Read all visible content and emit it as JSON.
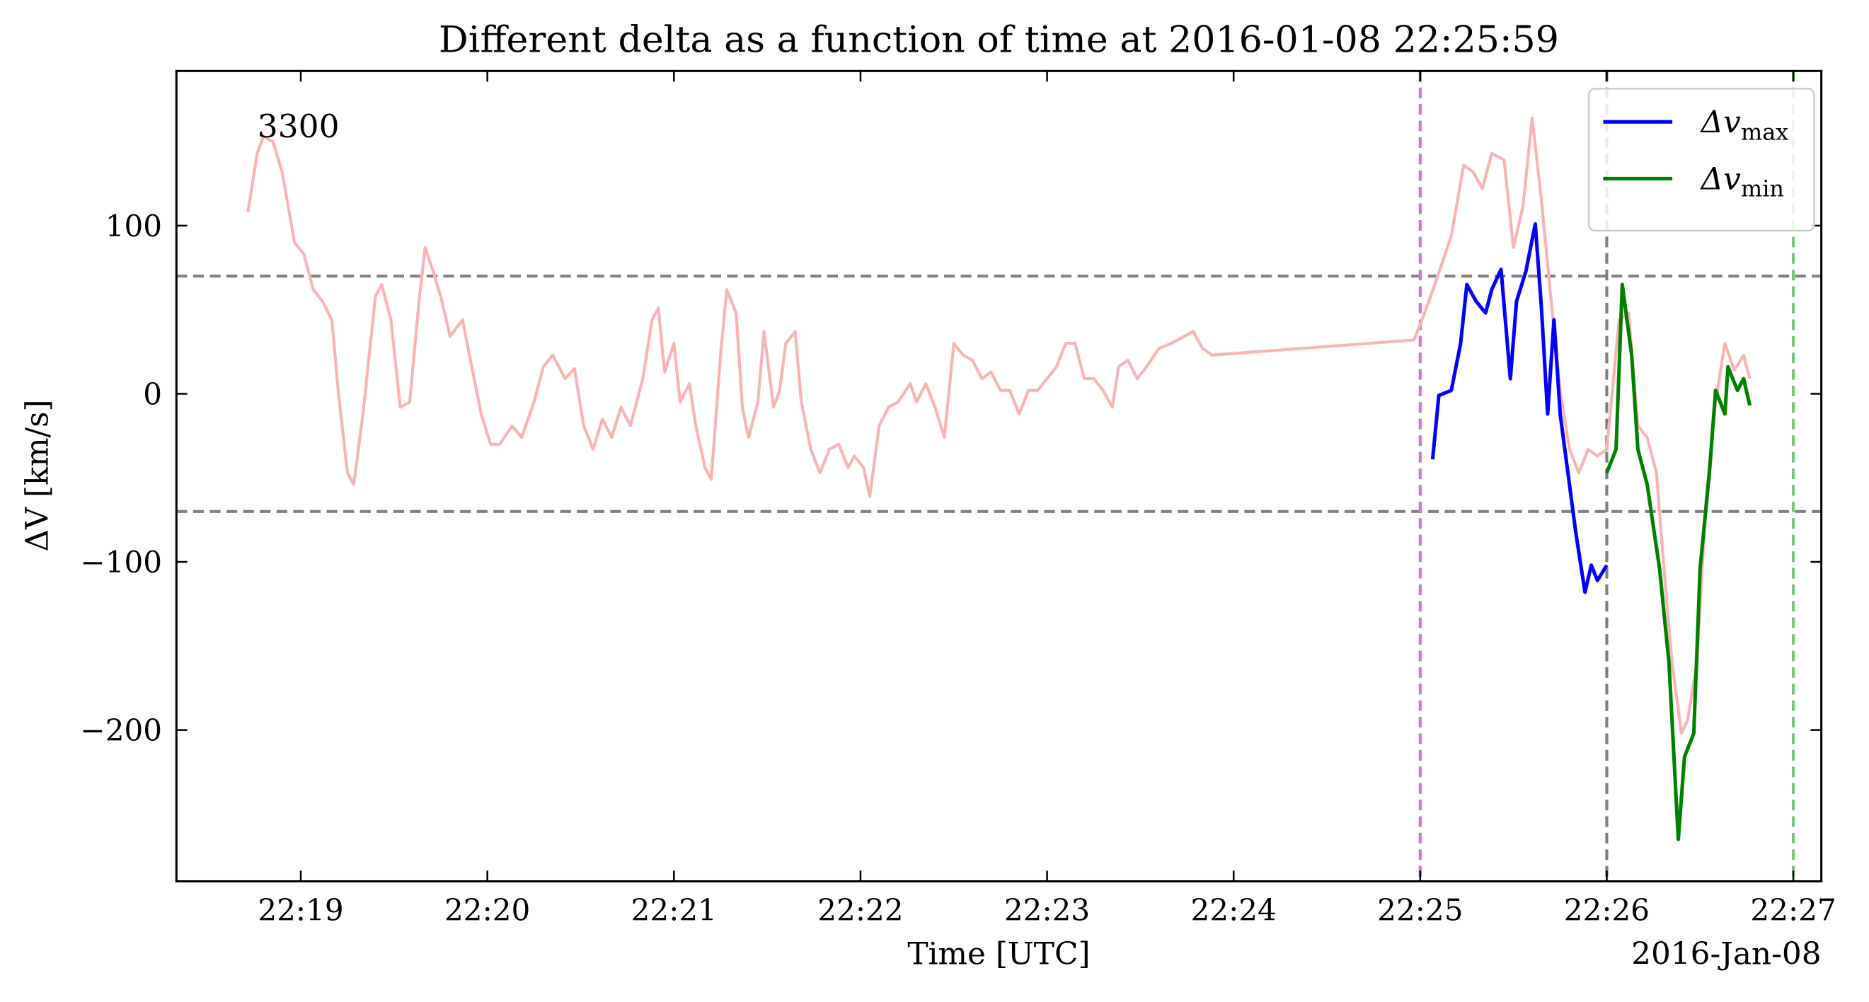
{
  "chart_data": {
    "type": "line",
    "title": "Different delta as a function of time at 2016-01-08 22:25:59",
    "xlabel": "Time [UTC]",
    "ylabel": "ΔV [km/s]",
    "x_offset_label": "2016-Jan-08",
    "annotation": {
      "text": "3300",
      "color": "#008000"
    },
    "xlim": [
      "22:18:20",
      "22:27:09"
    ],
    "xticks": [
      "22:19",
      "22:20",
      "22:21",
      "22:22",
      "22:23",
      "22:24",
      "22:25",
      "22:26",
      "22:27"
    ],
    "ylim": [
      -290,
      192
    ],
    "yticks": [
      {
        "value": -200,
        "label": "−200"
      },
      {
        "value": -100,
        "label": "−100"
      },
      0,
      100
    ],
    "legend": "upper right",
    "hlines": [
      {
        "value": 70,
        "color": "#808080"
      },
      {
        "value": -70,
        "color": "#808080"
      }
    ],
    "vlines": [
      {
        "x": "22:25:00",
        "color": "#da70d6"
      },
      {
        "x": "22:26:00",
        "color": "#808080"
      },
      {
        "x": "22:27:00",
        "color": "#7cc47c"
      }
    ],
    "series": [
      {
        "color": "#f9b3b3",
        "x": [
          "22:18:43",
          "22:18:46",
          "22:18:48",
          "22:18:51",
          "22:18:54",
          "22:18:56",
          "22:18:58",
          "22:19:01",
          "22:19:04",
          "22:19:07",
          "22:19:10",
          "22:19:12",
          "22:19:15",
          "22:19:17",
          "22:19:20",
          "22:19:24",
          "22:19:26",
          "22:19:29",
          "22:19:32",
          "22:19:35",
          "22:19:38",
          "22:19:40",
          "22:19:42",
          "22:19:45",
          "22:19:48",
          "22:19:52",
          "22:19:55",
          "22:19:58",
          "22:20:01",
          "22:20:04",
          "22:20:08",
          "22:20:11",
          "22:20:15",
          "22:20:18",
          "22:20:21",
          "22:20:25",
          "22:20:28",
          "22:20:31",
          "22:20:34",
          "22:20:37",
          "22:20:40",
          "22:20:43",
          "22:20:46",
          "22:20:50",
          "22:20:53",
          "22:20:55",
          "22:20:57",
          "22:21:00",
          "22:21:02",
          "22:21:05",
          "22:21:07",
          "22:21:10",
          "22:21:12",
          "22:21:15",
          "22:21:17",
          "22:21:20",
          "22:21:22",
          "22:21:24",
          "22:21:27",
          "22:21:29",
          "22:21:32",
          "22:21:34",
          "22:21:36",
          "22:21:39",
          "22:21:41",
          "22:21:44",
          "22:21:47",
          "22:21:50",
          "22:21:53",
          "22:21:56",
          "22:21:58",
          "22:22:01",
          "22:22:03",
          "22:22:06",
          "22:22:09",
          "22:22:12",
          "22:22:16",
          "22:22:18",
          "22:22:21",
          "22:22:24",
          "22:22:27",
          "22:22:30",
          "22:22:33",
          "22:22:36",
          "22:22:39",
          "22:22:42",
          "22:22:45",
          "22:22:48",
          "22:22:51",
          "22:22:54",
          "22:22:57",
          "22:23:00",
          "22:23:03",
          "22:23:06",
          "22:23:09",
          "22:23:12",
          "22:23:15",
          "22:23:18",
          "22:23:21",
          "22:23:23",
          "22:23:26",
          "22:23:29",
          "22:23:32",
          "22:23:36",
          "22:23:40",
          "22:23:44",
          "22:23:47",
          "22:23:50",
          "22:23:53",
          "22:24:58",
          "22:25:02",
          "22:25:06",
          "22:25:10",
          "22:25:14",
          "22:25:17",
          "22:25:20",
          "22:25:23",
          "22:25:27",
          "22:25:30",
          "22:25:33",
          "22:25:36",
          "22:25:39",
          "22:25:42",
          "22:25:45",
          "22:25:48",
          "22:25:51",
          "22:25:54",
          "22:25:57",
          "22:26:00",
          "22:26:04",
          "22:26:07",
          "22:26:10",
          "22:26:13",
          "22:26:16",
          "22:26:19",
          "22:26:21",
          "22:26:24",
          "22:26:26",
          "22:26:29",
          "22:26:32",
          "22:26:35",
          "22:26:38",
          "22:26:41",
          "22:26:44",
          "22:26:46"
        ],
        "values": [
          108,
          143,
          153,
          150,
          132,
          111,
          90,
          83,
          62,
          55,
          44,
          2,
          -47,
          -54,
          -12,
          58,
          65,
          44,
          -8,
          -5,
          55,
          87,
          76,
          58,
          34,
          44,
          16,
          -12,
          -30,
          -30,
          -19,
          -26,
          -5,
          16,
          23,
          9,
          15,
          -19,
          -33,
          -15,
          -26,
          -8,
          -19,
          9,
          44,
          51,
          13,
          30,
          -5,
          6,
          -19,
          -44,
          -51,
          23,
          62,
          48,
          -8,
          -26,
          -5,
          37,
          -8,
          2,
          30,
          37,
          -5,
          -33,
          -47,
          -33,
          -30,
          -44,
          -37,
          -44,
          -61,
          -19,
          -8,
          -5,
          6,
          -5,
          6,
          -8,
          -26,
          30,
          23,
          20,
          9,
          13,
          2,
          2,
          -12,
          2,
          2,
          9,
          16,
          30,
          30,
          9,
          9,
          2,
          -8,
          16,
          20,
          9,
          16,
          27,
          30,
          34,
          37,
          27,
          23,
          32,
          51,
          72,
          94,
          136,
          132,
          122,
          143,
          139,
          87,
          111,
          164,
          115,
          58,
          2,
          -33,
          -47,
          -33,
          -37,
          -33,
          44,
          48,
          -19,
          -26,
          -47,
          -118,
          -160,
          -202,
          -194,
          -160,
          -61,
          -5,
          30,
          14,
          23,
          9
        ]
      },
      {
        "name": "Δv",
        "name_sub": "max",
        "color": "#0000ff",
        "x": [
          "22:25:04",
          "22:25:06",
          "22:25:10",
          "22:25:13",
          "22:25:15",
          "22:25:18",
          "22:25:21",
          "22:25:23",
          "22:25:26",
          "22:25:29",
          "22:25:31",
          "22:25:34",
          "22:25:37",
          "22:25:39",
          "22:25:41",
          "22:25:43",
          "22:25:45",
          "22:25:48",
          "22:25:50",
          "22:25:53",
          "22:25:55",
          "22:25:57",
          "22:26:00"
        ],
        "values": [
          -39,
          -1,
          2,
          30,
          65,
          55,
          48,
          62,
          74,
          9,
          55,
          73,
          101,
          51,
          -12,
          44,
          -12,
          -54,
          -82,
          -118,
          -102,
          -111,
          -102
        ]
      },
      {
        "name": "Δv",
        "name_sub": "min",
        "color": "#008000",
        "x": [
          "22:26:00",
          "22:26:03",
          "22:26:05",
          "22:26:08",
          "22:26:10",
          "22:26:13",
          "22:26:17",
          "22:26:20",
          "22:26:23",
          "22:26:25",
          "22:26:28",
          "22:26:30",
          "22:26:33",
          "22:26:35",
          "22:26:38",
          "22:26:39",
          "22:26:42",
          "22:26:44",
          "22:26:46"
        ],
        "values": [
          -47,
          -33,
          65,
          23,
          -33,
          -54,
          -104,
          -160,
          -265,
          -216,
          -202,
          -104,
          -47,
          2,
          -12,
          16,
          2,
          9,
          -7
        ]
      }
    ]
  }
}
